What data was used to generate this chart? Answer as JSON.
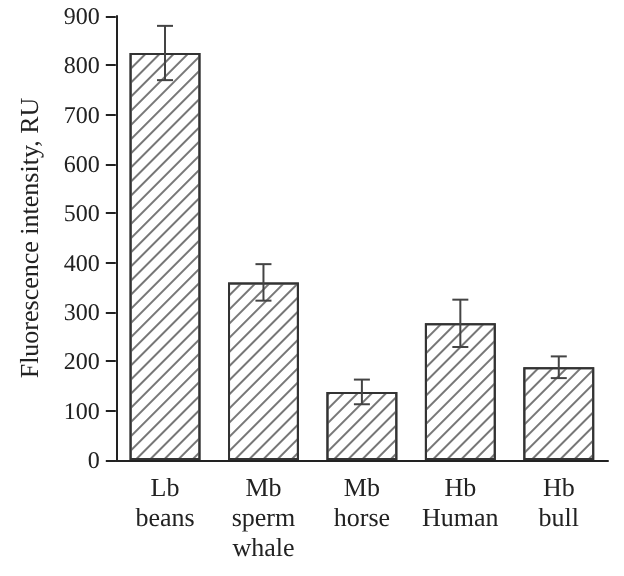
{
  "chart_data": {
    "type": "bar",
    "ylabel": "Fluorescence intensity, RU",
    "categories": [
      "Lb\nbeans",
      "Mb\nsperm\nwhale",
      "Mb\nhorse",
      "Hb\nHuman",
      "Hb\nbull"
    ],
    "values": [
      825,
      360,
      138,
      277,
      188
    ],
    "errors": [
      55,
      37,
      25,
      48,
      22
    ],
    "color": "#ffffff",
    "ylim": [
      0,
      900
    ],
    "yticks": [
      0,
      100,
      200,
      300,
      400,
      500,
      600,
      700,
      800,
      900
    ],
    "grid": false
  }
}
